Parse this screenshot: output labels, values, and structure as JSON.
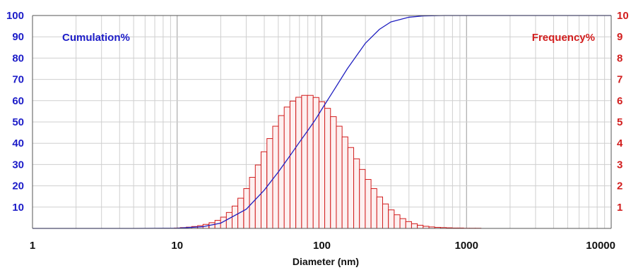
{
  "chart_data": {
    "type": "bar",
    "xlabel": "Diameter (nm)",
    "x_scale": "log",
    "xlim": [
      1,
      10000
    ],
    "x_ticks": [
      "1",
      "10",
      "100",
      "1000",
      "10000"
    ],
    "y_left": {
      "label": "Cumulation%",
      "lim": [
        0,
        100
      ],
      "ticks": [
        "10",
        "20",
        "30",
        "40",
        "50",
        "60",
        "70",
        "80",
        "90",
        "100"
      ],
      "color": "#1c1cc8"
    },
    "y_right": {
      "label": "Frequency%",
      "lim": [
        0,
        10
      ],
      "ticks": [
        "1",
        "2",
        "3",
        "4",
        "5",
        "6",
        "7",
        "8",
        "9",
        "10"
      ],
      "color": "#d21e1e"
    },
    "grid": true,
    "series": [
      {
        "name": "Frequency%",
        "type": "bar",
        "axis": "right",
        "color": "#d21e1e",
        "x": [
          10.0,
          11.0,
          12.1,
          13.2,
          14.5,
          15.8,
          17.4,
          19.1,
          20.9,
          22.9,
          25.1,
          27.5,
          30.2,
          33.1,
          36.3,
          39.8,
          43.7,
          47.9,
          52.5,
          57.5,
          63.1,
          69.2,
          75.9,
          83.2,
          91.2,
          100.0,
          109.6,
          120.2,
          131.8,
          144.5,
          158.5,
          173.8,
          190.5,
          208.9,
          229.1,
          251.2,
          275.4,
          302.0,
          331.1,
          363.1,
          398.1,
          436.5,
          478.6,
          524.8,
          575.4,
          631.0,
          691.8,
          758.6,
          831.8,
          912.0,
          1000.0,
          1096.5,
          1202.3
        ],
        "values": [
          0.02,
          0.04,
          0.06,
          0.09,
          0.13,
          0.19,
          0.27,
          0.38,
          0.53,
          0.75,
          1.05,
          1.42,
          1.87,
          2.4,
          2.98,
          3.6,
          4.22,
          4.8,
          5.3,
          5.7,
          5.98,
          6.16,
          6.25,
          6.25,
          6.15,
          5.95,
          5.64,
          5.25,
          4.8,
          4.3,
          3.8,
          3.27,
          2.77,
          2.3,
          1.87,
          1.48,
          1.15,
          0.87,
          0.64,
          0.46,
          0.32,
          0.22,
          0.15,
          0.1,
          0.07,
          0.05,
          0.04,
          0.03,
          0.02,
          0.02,
          0.01,
          0.01,
          0.01
        ]
      },
      {
        "name": "Cumulation%",
        "type": "line",
        "axis": "left",
        "color": "#2020c0",
        "x": [
          1,
          5,
          10,
          15,
          20,
          30,
          40,
          50,
          60,
          70,
          80,
          90,
          100,
          120,
          150,
          200,
          250,
          300,
          400,
          500,
          700,
          1000,
          10000
        ],
        "values": [
          0,
          0,
          0.1,
          0.8,
          2.5,
          9,
          18,
          26.5,
          34,
          40.5,
          46,
          51,
          56,
          64.5,
          75,
          87,
          93.5,
          97,
          99.2,
          99.8,
          100,
          100,
          100
        ]
      }
    ]
  }
}
